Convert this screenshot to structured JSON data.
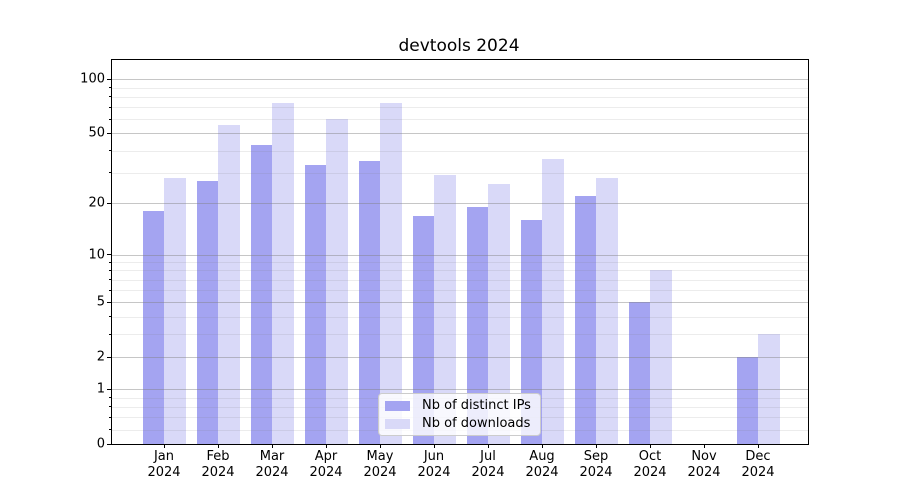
{
  "title": "devtools 2024",
  "chart_data": {
    "type": "bar",
    "title": "devtools 2024",
    "categories": [
      "Jan",
      "Feb",
      "Mar",
      "Apr",
      "May",
      "Jun",
      "Jul",
      "Aug",
      "Sep",
      "Oct",
      "Nov",
      "Dec"
    ],
    "category_year": "2024",
    "series": [
      {
        "name": "Nb of distinct IPs",
        "color": "#a4a4f1",
        "values": [
          18,
          27,
          43,
          33,
          35,
          17,
          19,
          16,
          22,
          5,
          0,
          2
        ]
      },
      {
        "name": "Nb of downloads",
        "color": "#d9d9f8",
        "values": [
          28,
          56,
          74,
          60,
          74,
          29,
          26,
          36,
          28,
          8,
          0,
          3
        ]
      }
    ],
    "yscale": "symlog",
    "ylim": [
      0,
      128
    ],
    "yticks": [
      0,
      1,
      2,
      5,
      10,
      20,
      50,
      100
    ],
    "yminorticks": [
      0.2,
      0.4,
      0.6,
      0.8,
      3,
      4,
      6,
      7,
      8,
      9,
      30,
      40,
      60,
      70,
      80,
      90
    ],
    "grid": true,
    "grid_major_color": "rgba(128,128,128,0.45)",
    "grid_minor_color": "rgba(128,128,128,0.15)",
    "legend_position": "lower center",
    "xlabel": "",
    "ylabel": ""
  }
}
